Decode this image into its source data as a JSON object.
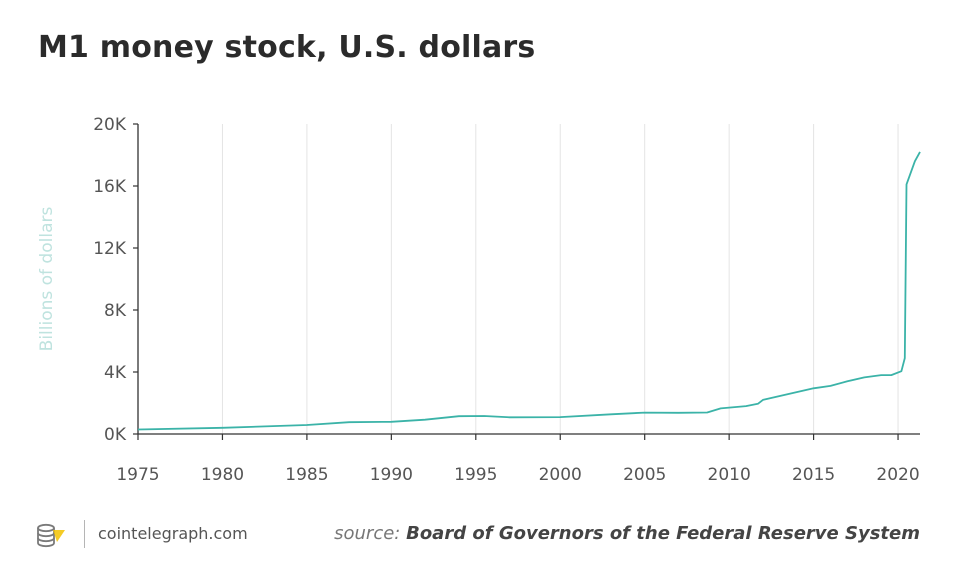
{
  "chart_data": {
    "type": "line",
    "title": "M1 money stock, U.S. dollars",
    "xlabel": "",
    "ylabel": "Billions of dollars",
    "xlim": [
      1975,
      2021.3
    ],
    "ylim": [
      0,
      20000
    ],
    "x_ticks": [
      1975,
      1980,
      1985,
      1990,
      1995,
      2000,
      2005,
      2010,
      2015,
      2020
    ],
    "x_tick_labels": [
      "1975",
      "1980",
      "1985",
      "1990",
      "1995",
      "2000",
      "2005",
      "2010",
      "2015",
      "2020"
    ],
    "y_ticks": [
      0,
      4000,
      8000,
      12000,
      16000,
      20000
    ],
    "y_tick_labels": [
      "0K",
      "4K",
      "8K",
      "12K",
      "16K",
      "20K"
    ],
    "grid": "vertical",
    "series": [
      {
        "name": "M1",
        "color": "#3bb3a8",
        "points": [
          [
            1975,
            290
          ],
          [
            1980,
            400
          ],
          [
            1985,
            580
          ],
          [
            1987.5,
            760
          ],
          [
            1990,
            790
          ],
          [
            1992,
            920
          ],
          [
            1994,
            1150
          ],
          [
            1995.5,
            1160
          ],
          [
            1997,
            1080
          ],
          [
            2000,
            1090
          ],
          [
            2003,
            1270
          ],
          [
            2005,
            1380
          ],
          [
            2007,
            1370
          ],
          [
            2008.7,
            1390
          ],
          [
            2009.5,
            1650
          ],
          [
            2011,
            1800
          ],
          [
            2011.7,
            1950
          ],
          [
            2012,
            2200
          ],
          [
            2013,
            2450
          ],
          [
            2014,
            2700
          ],
          [
            2015,
            2950
          ],
          [
            2016,
            3100
          ],
          [
            2017,
            3400
          ],
          [
            2018,
            3650
          ],
          [
            2019,
            3800
          ],
          [
            2019.6,
            3800
          ],
          [
            2020.2,
            4050
          ],
          [
            2020.4,
            4900
          ],
          [
            2020.5,
            16100
          ],
          [
            2021,
            17600
          ],
          [
            2021.3,
            18200
          ]
        ]
      }
    ]
  },
  "footer": {
    "site": "cointelegraph.com",
    "source_label": "source:",
    "source_name": "Board of Governors of the Federal Reserve System"
  },
  "colors": {
    "line": "#3bb3a8",
    "axis": "#333333",
    "grid": "#e4e4e4",
    "ylabel": "#bfe3df",
    "logo": "#7a7a7a",
    "logo_accent": "#f2c200"
  }
}
